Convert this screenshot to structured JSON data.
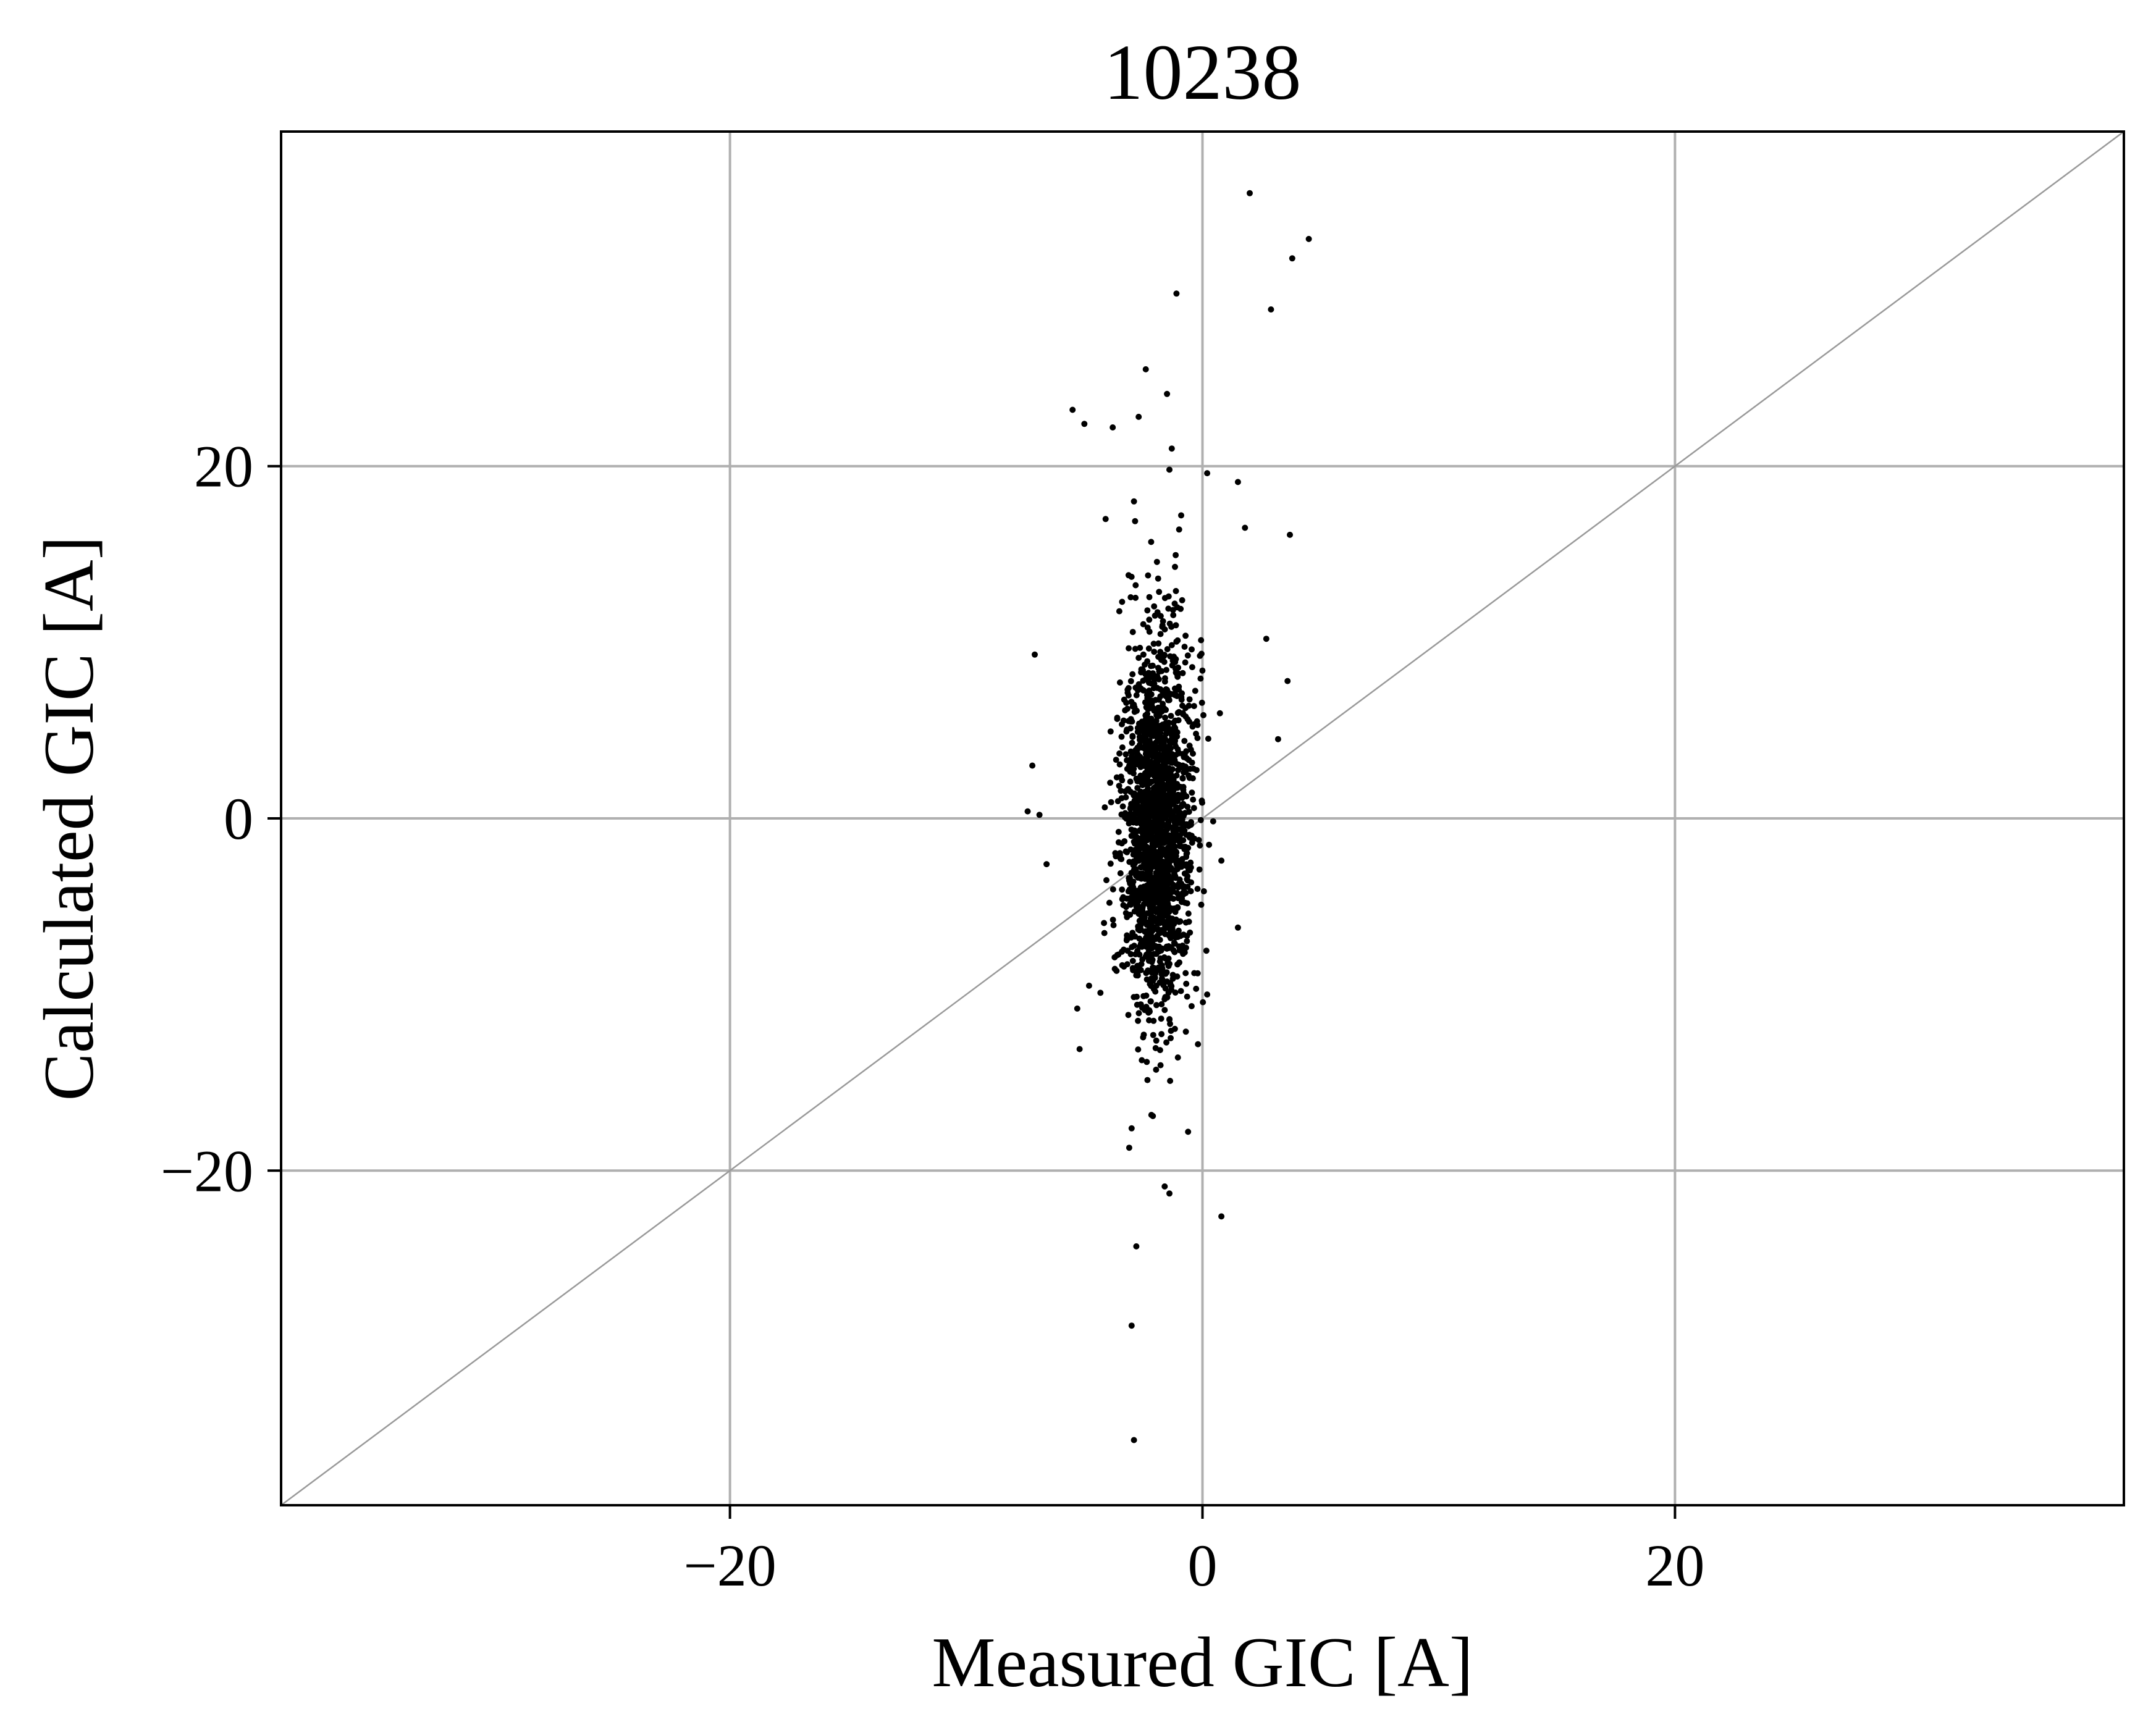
{
  "chart_data": {
    "type": "scatter",
    "title": "10238",
    "xlabel": "Measured GIC [A]",
    "ylabel": "Calculated GIC [A]",
    "xlim": [
      -39,
      39
    ],
    "ylim": [
      -39,
      39
    ],
    "x_ticks": [
      -20,
      0,
      20
    ],
    "y_ticks": [
      -20,
      0,
      20
    ],
    "x_tick_labels": [
      "−20",
      "0",
      "20"
    ],
    "y_tick_labels": [
      "−20",
      "0",
      "20"
    ],
    "grid": true,
    "reference_line": "y = x",
    "marker_color": "#000000",
    "grid_color": "#b0b0b0",
    "reference_line_color": "#999999",
    "cluster": {
      "x_mean": -1.9,
      "x_std": 0.75,
      "y_mean": -0.5,
      "y_std": 5.2,
      "count": 1900,
      "range": {
        "x": [
          -7.5,
          1.5
        ],
        "y": [
          -22,
          20
        ]
      }
    },
    "outliers": [
      [
        2.0,
        35.5
      ],
      [
        4.5,
        32.9
      ],
      [
        3.8,
        31.8
      ],
      [
        -1.1,
        29.8
      ],
      [
        2.9,
        28.9
      ],
      [
        -2.4,
        25.5
      ],
      [
        -1.5,
        24.1
      ],
      [
        -5.5,
        23.2
      ],
      [
        -2.7,
        22.8
      ],
      [
        -5.0,
        22.4
      ],
      [
        -3.8,
        22.2
      ],
      [
        -1.3,
        21.0
      ],
      [
        -1.4,
        19.8
      ],
      [
        0.2,
        19.6
      ],
      [
        1.5,
        19.1
      ],
      [
        -2.9,
        18.0
      ],
      [
        -4.1,
        17.0
      ],
      [
        3.7,
        16.1
      ],
      [
        1.8,
        16.5
      ],
      [
        -7.1,
        9.3
      ],
      [
        2.7,
        10.2
      ],
      [
        3.6,
        7.8
      ],
      [
        3.2,
        4.5
      ],
      [
        -7.2,
        3.0
      ],
      [
        -7.4,
        0.4
      ],
      [
        -6.9,
        0.2
      ],
      [
        -6.6,
        -2.6
      ],
      [
        -4.8,
        -9.5
      ],
      [
        -5.3,
        -10.8
      ],
      [
        -5.2,
        -13.1
      ],
      [
        0.2,
        -10.0
      ],
      [
        1.5,
        -6.2
      ],
      [
        0.8,
        -2.4
      ],
      [
        -3.0,
        -17.6
      ],
      [
        -2.1,
        -16.9
      ],
      [
        -3.1,
        -18.7
      ],
      [
        -1.6,
        -20.9
      ],
      [
        -1.4,
        -21.3
      ],
      [
        0.8,
        -22.6
      ],
      [
        -2.8,
        -24.3
      ],
      [
        -3.0,
        -28.8
      ],
      [
        -2.9,
        -35.3
      ]
    ]
  }
}
